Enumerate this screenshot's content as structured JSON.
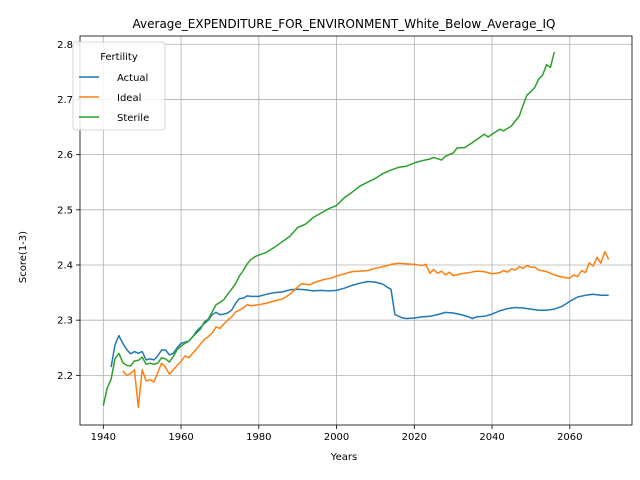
{
  "chart_data": {
    "type": "line",
    "title": "Average_EXPENDITURE_FOR_ENVIRONMENT_White_Below_Average_IQ",
    "xlabel": "Years",
    "ylabel": "Score(1-3)",
    "xlim": [
      1934,
      2076
    ],
    "ylim": [
      2.11,
      2.815
    ],
    "xticks": [
      "1940",
      "1960",
      "1980",
      "2000",
      "2020",
      "2040",
      "2060"
    ],
    "yticks": [
      "2.2",
      "2.3",
      "2.4",
      "2.5",
      "2.6",
      "2.7",
      "2.8"
    ],
    "grid": true,
    "legend": {
      "title": "Fertility",
      "placement": "top-left"
    },
    "series": [
      {
        "name": "Actual",
        "color": "#1f77b4",
        "points": [
          [
            1942,
            2.215
          ],
          [
            1943,
            2.255
          ],
          [
            1944,
            2.272
          ],
          [
            1945,
            2.258
          ],
          [
            1946,
            2.247
          ],
          [
            1947,
            2.239
          ],
          [
            1948,
            2.243
          ],
          [
            1949,
            2.24
          ],
          [
            1950,
            2.243
          ],
          [
            1951,
            2.228
          ],
          [
            1952,
            2.23
          ],
          [
            1953,
            2.228
          ],
          [
            1954,
            2.235
          ],
          [
            1955,
            2.246
          ],
          [
            1956,
            2.246
          ],
          [
            1957,
            2.237
          ],
          [
            1958,
            2.24
          ],
          [
            1959,
            2.25
          ],
          [
            1960,
            2.258
          ],
          [
            1961,
            2.26
          ],
          [
            1962,
            2.262
          ],
          [
            1963,
            2.27
          ],
          [
            1964,
            2.28
          ],
          [
            1965,
            2.287
          ],
          [
            1966,
            2.294
          ],
          [
            1967,
            2.3
          ],
          [
            1968,
            2.31
          ],
          [
            1969,
            2.314
          ],
          [
            1970,
            2.31
          ],
          [
            1971,
            2.311
          ],
          [
            1972,
            2.313
          ],
          [
            1973,
            2.318
          ],
          [
            1974,
            2.33
          ],
          [
            1975,
            2.339
          ],
          [
            1976,
            2.34
          ],
          [
            1977,
            2.344
          ],
          [
            1978,
            2.343
          ],
          [
            1980,
            2.343
          ],
          [
            1982,
            2.347
          ],
          [
            1984,
            2.35
          ],
          [
            1986,
            2.351
          ],
          [
            1988,
            2.355
          ],
          [
            1990,
            2.356
          ],
          [
            1992,
            2.355
          ],
          [
            1994,
            2.353
          ],
          [
            1996,
            2.354
          ],
          [
            1998,
            2.353
          ],
          [
            2000,
            2.354
          ],
          [
            2002,
            2.358
          ],
          [
            2004,
            2.363
          ],
          [
            2006,
            2.367
          ],
          [
            2008,
            2.37
          ],
          [
            2010,
            2.369
          ],
          [
            2012,
            2.365
          ],
          [
            2013,
            2.36
          ],
          [
            2014,
            2.356
          ],
          [
            2015,
            2.31
          ],
          [
            2016,
            2.307
          ],
          [
            2017,
            2.304
          ],
          [
            2018,
            2.303
          ],
          [
            2020,
            2.304
          ],
          [
            2022,
            2.306
          ],
          [
            2024,
            2.307
          ],
          [
            2026,
            2.31
          ],
          [
            2028,
            2.314
          ],
          [
            2030,
            2.313
          ],
          [
            2032,
            2.31
          ],
          [
            2034,
            2.306
          ],
          [
            2035,
            2.303
          ],
          [
            2036,
            2.306
          ],
          [
            2038,
            2.307
          ],
          [
            2040,
            2.311
          ],
          [
            2042,
            2.317
          ],
          [
            2044,
            2.321
          ],
          [
            2046,
            2.323
          ],
          [
            2048,
            2.322
          ],
          [
            2050,
            2.32
          ],
          [
            2052,
            2.318
          ],
          [
            2054,
            2.318
          ],
          [
            2056,
            2.32
          ],
          [
            2058,
            2.325
          ],
          [
            2060,
            2.334
          ],
          [
            2062,
            2.342
          ],
          [
            2064,
            2.345
          ],
          [
            2066,
            2.347
          ],
          [
            2068,
            2.345
          ],
          [
            2070,
            2.345
          ]
        ]
      },
      {
        "name": "Ideal",
        "color": "#ff7f0e",
        "points": [
          [
            1945,
            2.208
          ],
          [
            1946,
            2.2
          ],
          [
            1947,
            2.203
          ],
          [
            1948,
            2.21
          ],
          [
            1949,
            2.142
          ],
          [
            1950,
            2.21
          ],
          [
            1951,
            2.19
          ],
          [
            1952,
            2.192
          ],
          [
            1953,
            2.188
          ],
          [
            1954,
            2.205
          ],
          [
            1955,
            2.222
          ],
          [
            1956,
            2.215
          ],
          [
            1957,
            2.202
          ],
          [
            1958,
            2.21
          ],
          [
            1959,
            2.218
          ],
          [
            1960,
            2.225
          ],
          [
            1961,
            2.235
          ],
          [
            1962,
            2.232
          ],
          [
            1963,
            2.24
          ],
          [
            1964,
            2.248
          ],
          [
            1965,
            2.257
          ],
          [
            1966,
            2.265
          ],
          [
            1967,
            2.27
          ],
          [
            1968,
            2.277
          ],
          [
            1969,
            2.288
          ],
          [
            1970,
            2.285
          ],
          [
            1971,
            2.293
          ],
          [
            1972,
            2.3
          ],
          [
            1973,
            2.306
          ],
          [
            1974,
            2.315
          ],
          [
            1975,
            2.318
          ],
          [
            1976,
            2.322
          ],
          [
            1977,
            2.328
          ],
          [
            1978,
            2.326
          ],
          [
            1980,
            2.328
          ],
          [
            1982,
            2.331
          ],
          [
            1984,
            2.335
          ],
          [
            1986,
            2.338
          ],
          [
            1988,
            2.347
          ],
          [
            1990,
            2.36
          ],
          [
            1991,
            2.366
          ],
          [
            1993,
            2.364
          ],
          [
            1995,
            2.37
          ],
          [
            1997,
            2.374
          ],
          [
            1999,
            2.377
          ],
          [
            2000,
            2.38
          ],
          [
            2002,
            2.384
          ],
          [
            2004,
            2.388
          ],
          [
            2006,
            2.389
          ],
          [
            2008,
            2.39
          ],
          [
            2010,
            2.394
          ],
          [
            2012,
            2.397
          ],
          [
            2014,
            2.401
          ],
          [
            2016,
            2.403
          ],
          [
            2018,
            2.402
          ],
          [
            2020,
            2.401
          ],
          [
            2022,
            2.399
          ],
          [
            2023,
            2.401
          ],
          [
            2024,
            2.385
          ],
          [
            2025,
            2.392
          ],
          [
            2026,
            2.385
          ],
          [
            2027,
            2.389
          ],
          [
            2028,
            2.382
          ],
          [
            2029,
            2.387
          ],
          [
            2030,
            2.381
          ],
          [
            2032,
            2.384
          ],
          [
            2034,
            2.386
          ],
          [
            2036,
            2.389
          ],
          [
            2038,
            2.388
          ],
          [
            2040,
            2.384
          ],
          [
            2042,
            2.386
          ],
          [
            2043,
            2.39
          ],
          [
            2044,
            2.387
          ],
          [
            2045,
            2.393
          ],
          [
            2046,
            2.391
          ],
          [
            2047,
            2.397
          ],
          [
            2048,
            2.394
          ],
          [
            2049,
            2.399
          ],
          [
            2050,
            2.396
          ],
          [
            2051,
            2.396
          ],
          [
            2052,
            2.391
          ],
          [
            2054,
            2.388
          ],
          [
            2056,
            2.382
          ],
          [
            2058,
            2.378
          ],
          [
            2060,
            2.376
          ],
          [
            2061,
            2.382
          ],
          [
            2062,
            2.379
          ],
          [
            2063,
            2.39
          ],
          [
            2064,
            2.386
          ],
          [
            2065,
            2.404
          ],
          [
            2066,
            2.398
          ],
          [
            2067,
            2.414
          ],
          [
            2068,
            2.403
          ],
          [
            2069,
            2.424
          ],
          [
            2070,
            2.41
          ]
        ]
      },
      {
        "name": "Sterile",
        "color": "#2ca02c",
        "points": [
          [
            1940,
            2.145
          ],
          [
            1941,
            2.177
          ],
          [
            1942,
            2.193
          ],
          [
            1943,
            2.23
          ],
          [
            1944,
            2.24
          ],
          [
            1945,
            2.223
          ],
          [
            1946,
            2.218
          ],
          [
            1947,
            2.217
          ],
          [
            1948,
            2.226
          ],
          [
            1949,
            2.227
          ],
          [
            1950,
            2.233
          ],
          [
            1951,
            2.22
          ],
          [
            1952,
            2.222
          ],
          [
            1953,
            2.22
          ],
          [
            1954,
            2.222
          ],
          [
            1955,
            2.232
          ],
          [
            1956,
            2.23
          ],
          [
            1957,
            2.224
          ],
          [
            1958,
            2.234
          ],
          [
            1959,
            2.247
          ],
          [
            1960,
            2.253
          ],
          [
            1961,
            2.258
          ],
          [
            1962,
            2.262
          ],
          [
            1963,
            2.27
          ],
          [
            1964,
            2.277
          ],
          [
            1965,
            2.284
          ],
          [
            1966,
            2.297
          ],
          [
            1967,
            2.302
          ],
          [
            1968,
            2.315
          ],
          [
            1969,
            2.328
          ],
          [
            1970,
            2.332
          ],
          [
            1971,
            2.337
          ],
          [
            1972,
            2.347
          ],
          [
            1973,
            2.356
          ],
          [
            1974,
            2.366
          ],
          [
            1975,
            2.38
          ],
          [
            1976,
            2.39
          ],
          [
            1977,
            2.402
          ],
          [
            1978,
            2.41
          ],
          [
            1979,
            2.415
          ],
          [
            1980,
            2.418
          ],
          [
            1982,
            2.423
          ],
          [
            1984,
            2.432
          ],
          [
            1986,
            2.442
          ],
          [
            1988,
            2.452
          ],
          [
            1990,
            2.468
          ],
          [
            1992,
            2.474
          ],
          [
            1994,
            2.486
          ],
          [
            1996,
            2.494
          ],
          [
            1998,
            2.502
          ],
          [
            2000,
            2.508
          ],
          [
            2002,
            2.522
          ],
          [
            2004,
            2.532
          ],
          [
            2006,
            2.543
          ],
          [
            2008,
            2.55
          ],
          [
            2010,
            2.557
          ],
          [
            2012,
            2.566
          ],
          [
            2014,
            2.572
          ],
          [
            2016,
            2.577
          ],
          [
            2018,
            2.579
          ],
          [
            2020,
            2.585
          ],
          [
            2022,
            2.589
          ],
          [
            2024,
            2.592
          ],
          [
            2025,
            2.595
          ],
          [
            2027,
            2.59
          ],
          [
            2028,
            2.597
          ],
          [
            2030,
            2.603
          ],
          [
            2031,
            2.612
          ],
          [
            2033,
            2.613
          ],
          [
            2035,
            2.622
          ],
          [
            2037,
            2.632
          ],
          [
            2038,
            2.637
          ],
          [
            2039,
            2.632
          ],
          [
            2040,
            2.637
          ],
          [
            2042,
            2.646
          ],
          [
            2043,
            2.643
          ],
          [
            2045,
            2.652
          ],
          [
            2047,
            2.67
          ],
          [
            2048,
            2.69
          ],
          [
            2049,
            2.708
          ],
          [
            2050,
            2.714
          ],
          [
            2051,
            2.722
          ],
          [
            2052,
            2.737
          ],
          [
            2053,
            2.744
          ],
          [
            2054,
            2.763
          ],
          [
            2055,
            2.758
          ],
          [
            2056,
            2.786
          ]
        ]
      }
    ]
  }
}
